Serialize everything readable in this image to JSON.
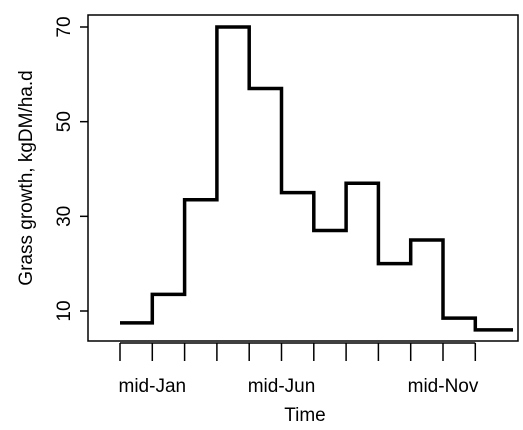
{
  "chart_data": {
    "type": "line",
    "step": true,
    "title": "",
    "xlabel": "Time",
    "ylabel": "Grass growth, kgDM/ha.d",
    "x_tick_labels": [
      {
        "label": "mid-Jan",
        "month_index": 1
      },
      {
        "label": "mid-Jun",
        "month_index": 5
      },
      {
        "label": "mid-Nov",
        "month_index": 10
      }
    ],
    "y_ticks": [
      10,
      30,
      50,
      70
    ],
    "ylim": [
      5,
      72
    ],
    "grid": false,
    "series": [
      {
        "months": [
          "Jan",
          "Feb",
          "Mar",
          "Apr",
          "May",
          "Jun",
          "Jul",
          "Aug",
          "Sep",
          "Oct",
          "Nov",
          "Dec"
        ],
        "values": [
          7.5,
          13.5,
          33.5,
          70,
          57,
          35,
          27,
          37,
          20,
          25,
          8.5,
          6
        ]
      }
    ],
    "line_color": "#000000"
  }
}
